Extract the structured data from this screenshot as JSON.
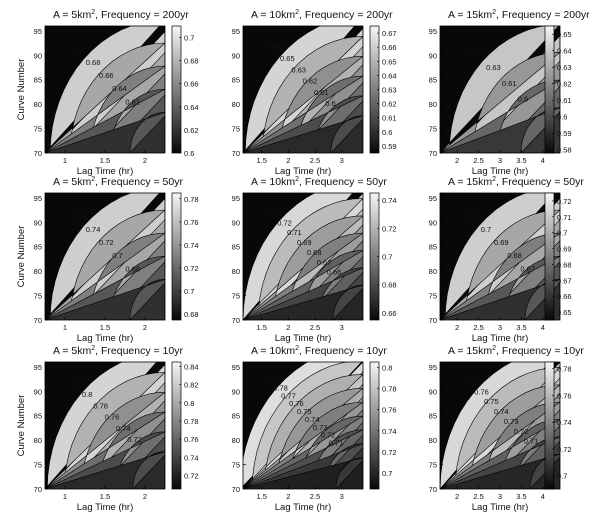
{
  "chart_data": [
    {
      "type": "contour",
      "title": "A = 5km2, Frequency =  200yr",
      "title_prefix": "A = 5km",
      "title_suffix": ", Frequency =  200yr",
      "sup": "2",
      "xlabel": "Lag Time (hr)",
      "ylabel": "Curve Number",
      "xlim": [
        0.75,
        2.25
      ],
      "ylim": [
        70,
        96
      ],
      "xticks": [
        "1",
        "1.5",
        "2"
      ],
      "xtick_values": [
        1,
        1.5,
        2
      ],
      "yticks": [
        "70",
        "75",
        "80",
        "85",
        "90",
        "95"
      ],
      "colorbar_range": [
        0.6,
        0.71
      ],
      "colorbar_ticks": [
        "0.7",
        "0.68",
        "0.66",
        "0.64",
        "0.62",
        "0.6"
      ],
      "contour_levels": [
        0.7,
        0.68,
        0.66,
        0.64,
        0.62
      ],
      "contour_labels": [
        "0.7",
        "0.68",
        "0.66",
        "0.64",
        "0.62"
      ]
    },
    {
      "type": "contour",
      "title": "A = 10km2, Frequency =  200yr",
      "title_prefix": "A = 10km",
      "title_suffix": ", Frequency =  200yr",
      "sup": "2",
      "xlabel": "Lag Time (hr)",
      "ylabel": "",
      "xlim": [
        1.15,
        3.4
      ],
      "ylim": [
        70,
        96
      ],
      "xticks": [
        "1.5",
        "2",
        "2.5",
        "3"
      ],
      "xtick_values": [
        1.5,
        2,
        2.5,
        3
      ],
      "yticks": [
        "70",
        "75",
        "80",
        "85",
        "90",
        "95"
      ],
      "colorbar_range": [
        0.585,
        0.675
      ],
      "colorbar_ticks": [
        "0.67",
        "0.66",
        "0.65",
        "0.64",
        "0.63",
        "0.62",
        "0.61",
        "0.6",
        "0.59"
      ],
      "contour_levels": [
        0.66,
        0.65,
        0.63,
        0.62,
        0.61,
        0.6
      ],
      "contour_labels": [
        "0.66",
        "0.65",
        "0.63",
        "0.62",
        "0.61",
        "0.6"
      ]
    },
    {
      "type": "contour",
      "title": "A = 15km2, Frequency =  200yr",
      "title_prefix": "A = 15km",
      "title_suffix": ", Frequency =  200yr",
      "sup": "2",
      "xlabel": "Lag Time (hr)",
      "ylabel": "",
      "xlim": [
        1.6,
        4.4
      ],
      "ylim": [
        70,
        96
      ],
      "xticks": [
        "2",
        "2.5",
        "3",
        "3.5",
        "4"
      ],
      "xtick_values": [
        2,
        2.5,
        3,
        3.5,
        4
      ],
      "yticks": [
        "70",
        "75",
        "80",
        "85",
        "90",
        "95"
      ],
      "colorbar_range": [
        0.578,
        0.655
      ],
      "colorbar_ticks": [
        "0.65",
        "0.64",
        "0.63",
        "0.62",
        "0.61",
        "0.6",
        "0.59",
        "0.58"
      ],
      "contour_levels": [
        0.64,
        0.63,
        0.61,
        0.6
      ],
      "contour_labels": [
        "0.64",
        "0.63",
        "0.61",
        "0.6"
      ]
    },
    {
      "type": "contour",
      "title": "A = 5km2, Frequency =  50yr",
      "title_prefix": "A = 5km",
      "title_suffix": ", Frequency =  50yr",
      "sup": "2",
      "xlabel": "Lag Time (hr)",
      "ylabel": "Curve Number",
      "xlim": [
        0.75,
        2.25
      ],
      "ylim": [
        70,
        96
      ],
      "xticks": [
        "1",
        "1.5",
        "2"
      ],
      "xtick_values": [
        1,
        1.5,
        2
      ],
      "yticks": [
        "70",
        "75",
        "80",
        "85",
        "90",
        "95"
      ],
      "colorbar_range": [
        0.675,
        0.785
      ],
      "colorbar_ticks": [
        "0.78",
        "0.76",
        "0.74",
        "0.72",
        "0.7",
        "0.68"
      ],
      "contour_levels": [
        0.76,
        0.74,
        0.72,
        0.7,
        0.68
      ],
      "contour_labels": [
        "0.76",
        "0.74",
        "0.72",
        "0.7",
        "0.68"
      ]
    },
    {
      "type": "contour",
      "title": "A = 10km2, Frequency =  50yr",
      "title_prefix": "A = 10km",
      "title_suffix": ", Frequency =  50yr",
      "sup": "2",
      "xlabel": "Lag Time (hr)",
      "ylabel": "",
      "xlim": [
        1.15,
        3.4
      ],
      "ylim": [
        70,
        96
      ],
      "xticks": [
        "1.5",
        "2",
        "2.5",
        "3"
      ],
      "xtick_values": [
        1.5,
        2,
        2.5,
        3
      ],
      "yticks": [
        "70",
        "75",
        "80",
        "85",
        "90",
        "95"
      ],
      "colorbar_range": [
        0.655,
        0.745
      ],
      "colorbar_ticks": [
        "0.74",
        "0.72",
        "0.7",
        "0.68",
        "0.66"
      ],
      "contour_levels": [
        0.73,
        0.72,
        0.71,
        0.69,
        0.68,
        0.67,
        0.66
      ],
      "contour_labels": [
        "0.73",
        "0.72",
        "0.71",
        "0.69",
        "0.68",
        "0.67",
        "0.66"
      ]
    },
    {
      "type": "contour",
      "title": "A = 15km2, Frequency =  50yr",
      "title_prefix": "A = 15km",
      "title_suffix": ", Frequency =  50yr",
      "sup": "2",
      "xlabel": "Lag Time (hr)",
      "ylabel": "",
      "xlim": [
        1.6,
        4.4
      ],
      "ylim": [
        70,
        96
      ],
      "xticks": [
        "2",
        "2.5",
        "3",
        "3.5",
        "4"
      ],
      "xtick_values": [
        2,
        2.5,
        3,
        3.5,
        4
      ],
      "yticks": [
        "70",
        "75",
        "80",
        "85",
        "90",
        "95"
      ],
      "colorbar_range": [
        0.645,
        0.725
      ],
      "colorbar_ticks": [
        "0.72",
        "0.71",
        "0.7",
        "0.69",
        "0.68",
        "0.67",
        "0.66",
        "0.65"
      ],
      "contour_levels": [
        0.71,
        0.7,
        0.69,
        0.68,
        0.67
      ],
      "contour_labels": [
        "0.71",
        "0.7",
        "0.69",
        "0.68",
        "0.67"
      ]
    },
    {
      "type": "contour",
      "title": "A = 5km2, Frequency =  10yr",
      "title_prefix": "A = 5km",
      "title_suffix": ", Frequency =  10yr",
      "sup": "2",
      "xlabel": "Lag Time (hr)",
      "ylabel": "Curve Number",
      "xlim": [
        0.75,
        2.25
      ],
      "ylim": [
        70,
        96
      ],
      "xticks": [
        "1",
        "1.5",
        "2"
      ],
      "xtick_values": [
        1,
        1.5,
        2
      ],
      "yticks": [
        "70",
        "75",
        "80",
        "85",
        "90",
        "95"
      ],
      "colorbar_range": [
        0.705,
        0.845
      ],
      "colorbar_ticks": [
        "0.84",
        "0.82",
        "0.8",
        "0.78",
        "0.76",
        "0.74",
        "0.72"
      ],
      "contour_levels": [
        0.82,
        0.8,
        0.78,
        0.76,
        0.74,
        0.72
      ],
      "contour_labels": [
        "0.82",
        "0.8",
        "0.78",
        "0.76",
        "0.74",
        "0.72"
      ]
    },
    {
      "type": "contour",
      "title": "A = 10km2, Frequency =  10yr",
      "title_prefix": "A = 10km",
      "title_suffix": ", Frequency =  10yr",
      "sup": "2",
      "xlabel": "Lag Time (hr)",
      "ylabel": "",
      "xlim": [
        1.15,
        3.4
      ],
      "ylim": [
        70,
        96
      ],
      "xticks": [
        "1.5",
        "2",
        "2.5",
        "3"
      ],
      "xtick_values": [
        1.5,
        2,
        2.5,
        3
      ],
      "yticks": [
        "70",
        "75",
        "80",
        "85",
        "90",
        "95"
      ],
      "colorbar_range": [
        0.685,
        0.805
      ],
      "colorbar_ticks": [
        "0.8",
        "0.78",
        "0.76",
        "0.74",
        "0.72",
        "0.7"
      ],
      "contour_levels": [
        0.79,
        0.78,
        0.77,
        0.76,
        0.75,
        0.74,
        0.73,
        0.72,
        0.71
      ],
      "contour_labels": [
        "0.79",
        "0.78",
        "0.77",
        "0.76",
        "0.75",
        "0.74",
        "0.73",
        "0.72",
        "0.71"
      ]
    },
    {
      "type": "contour",
      "title": "A = 15km2, Frequency =  10yr",
      "title_prefix": "A = 15km",
      "title_suffix": ", Frequency =  10yr",
      "sup": "2",
      "xlabel": "Lag Time (hr)",
      "ylabel": "",
      "xlim": [
        1.6,
        4.4
      ],
      "ylim": [
        70,
        96
      ],
      "xticks": [
        "2",
        "2.5",
        "3",
        "3.5",
        "4"
      ],
      "xtick_values": [
        2,
        2.5,
        3,
        3.5,
        4
      ],
      "yticks": [
        "70",
        "75",
        "80",
        "85",
        "90",
        "95"
      ],
      "colorbar_range": [
        0.69,
        0.785
      ],
      "colorbar_ticks": [
        "0.78",
        "0.76",
        "0.74",
        "0.72",
        "0.7"
      ],
      "contour_levels": [
        0.77,
        0.76,
        0.75,
        0.74,
        0.73,
        0.72,
        0.71
      ],
      "contour_labels": [
        "0.77",
        "0.76",
        "0.75",
        "0.74",
        "0.73",
        "0.72",
        "0.71"
      ]
    }
  ]
}
